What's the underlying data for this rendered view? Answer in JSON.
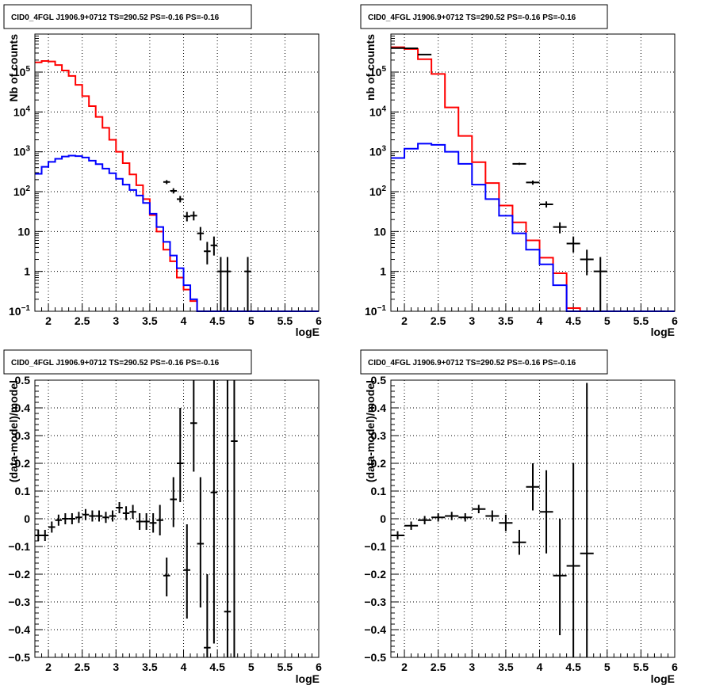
{
  "colors": {
    "model_total": "#ff0000",
    "model_component": "#0000ff",
    "data": "#000000",
    "grid": "#000000",
    "background": "#ffffff"
  },
  "chart_data": [
    {
      "panel": "top-left",
      "type": "histogram",
      "title": "CID0_4FGL J1906.9+0712 TS=290.52 PS=-0.16 PS=-0.16",
      "xlabel": "logE",
      "ylabel": "Nb of counts",
      "xlim": [
        1.8,
        6.0
      ],
      "ylim": [
        0.1,
        900000
      ],
      "yscale": "log",
      "grid": true,
      "xticks": [
        "2",
        "2.5",
        "3",
        "3.5",
        "4",
        "4.5",
        "5",
        "5.5",
        "6"
      ],
      "yticks": [
        "10^-1",
        "1",
        "10",
        "10^2",
        "10^3",
        "10^4",
        "10^5"
      ],
      "bins": {
        "start": 1.8,
        "width": 0.1
      },
      "series": [
        {
          "name": "",
          "color": "red",
          "values": [
            175000,
            190000,
            185000,
            150000,
            110000,
            80000,
            48000,
            25000,
            14000,
            7500,
            4000,
            2000,
            1000,
            520,
            270,
            145,
            65,
            26,
            10,
            3.5,
            1.8,
            0.7,
            0.35,
            0.18,
            0.1,
            0.1,
            0.1,
            0.1,
            0.1,
            0.1,
            0.1,
            0.1,
            0.1,
            0.1,
            0.1,
            0.1,
            0.1,
            0.1,
            0.1,
            0.1,
            0.1,
            0.1
          ]
        },
        {
          "name": "",
          "color": "blue",
          "values": [
            280,
            420,
            560,
            670,
            760,
            800,
            780,
            720,
            600,
            490,
            380,
            290,
            210,
            150,
            110,
            80,
            52,
            28,
            13,
            5.5,
            2.5,
            1.2,
            0.45,
            0.2,
            0.1,
            0.1,
            0.1,
            0.1,
            0.1,
            0.1,
            0.1,
            0.1,
            0.1,
            0.1,
            0.1,
            0.1,
            0.1,
            0.1,
            0.1,
            0.1,
            0.1,
            0.1
          ]
        }
      ],
      "points": [
        {
          "x": 3.75,
          "y": 175,
          "ylo": 155,
          "yhi": 195
        },
        {
          "x": 3.85,
          "y": 105,
          "ylo": 90,
          "yhi": 122
        },
        {
          "x": 3.95,
          "y": 65,
          "ylo": 54,
          "yhi": 78
        },
        {
          "x": 4.05,
          "y": 24,
          "ylo": 18,
          "yhi": 31
        },
        {
          "x": 4.15,
          "y": 25,
          "ylo": 19,
          "yhi": 32
        },
        {
          "x": 4.25,
          "y": 9,
          "ylo": 6,
          "yhi": 13
        },
        {
          "x": 4.35,
          "y": 3.2,
          "ylo": 1.5,
          "yhi": 5.5
        },
        {
          "x": 4.45,
          "y": 4.5,
          "ylo": 2.5,
          "yhi": 7.5
        },
        {
          "x": 4.55,
          "y": 1,
          "ylo": 0.1,
          "yhi": 2.3
        },
        {
          "x": 4.65,
          "y": 1,
          "ylo": 0.1,
          "yhi": 2.3
        },
        {
          "x": 4.95,
          "y": 1,
          "ylo": 0.1,
          "yhi": 2.3
        }
      ]
    },
    {
      "panel": "top-right",
      "type": "histogram",
      "title": "CID0_4FGL J1906.9+0712 TS=290.52 PS=-0.16 PS=-0.16",
      "xlabel": "logE",
      "ylabel": "nb of counts",
      "xlim": [
        1.8,
        6.0
      ],
      "ylim": [
        0.1,
        900000
      ],
      "yscale": "log",
      "grid": true,
      "xticks": [
        "2",
        "2.5",
        "3",
        "3.5",
        "4",
        "4.5",
        "5",
        "5.5",
        "6"
      ],
      "yticks": [
        "10^-1",
        "1",
        "10",
        "10^2",
        "10^3",
        "10^4",
        "10^5"
      ],
      "bins": {
        "start": 1.8,
        "width": 0.2
      },
      "series": [
        {
          "name": "",
          "color": "red",
          "values": [
            420000,
            380000,
            210000,
            90000,
            13000,
            2500,
            550,
            165,
            45,
            17,
            6,
            2.2,
            0.9,
            0.12,
            0.1,
            0.1,
            0.1,
            0.1,
            0.1,
            0.1,
            0.1
          ]
        },
        {
          "name": "",
          "color": "blue",
          "values": [
            700,
            1200,
            1600,
            1500,
            1000,
            500,
            150,
            65,
            25,
            9,
            3.5,
            1.5,
            0.45,
            0.1,
            0.1,
            0.1,
            0.1,
            0.1,
            0.1,
            0.1,
            0.1
          ]
        }
      ],
      "points": [
        {
          "x": 1.9,
          "y": 400000,
          "ylo": 395000,
          "yhi": 405000
        },
        {
          "x": 2.1,
          "y": 395000,
          "ylo": 390000,
          "yhi": 400000
        },
        {
          "x": 2.3,
          "y": 275000,
          "ylo": 270000,
          "yhi": 280000
        },
        {
          "x": 3.7,
          "y": 500,
          "ylo": 470,
          "yhi": 530
        },
        {
          "x": 3.9,
          "y": 170,
          "ylo": 150,
          "yhi": 190
        },
        {
          "x": 4.1,
          "y": 48,
          "ylo": 40,
          "yhi": 57
        },
        {
          "x": 4.3,
          "y": 13,
          "ylo": 9,
          "yhi": 17
        },
        {
          "x": 4.5,
          "y": 5,
          "ylo": 3,
          "yhi": 7.5
        },
        {
          "x": 4.7,
          "y": 2,
          "ylo": 0.8,
          "yhi": 3.5
        },
        {
          "x": 4.9,
          "y": 1,
          "ylo": 0.1,
          "yhi": 2.3
        }
      ]
    },
    {
      "panel": "bottom-left",
      "type": "scatter",
      "title": "CID0_4FGL J1906.9+0712 TS=290.52 PS=-0.16 PS=-0.16",
      "xlabel": "logE",
      "ylabel": "(data-model)/model",
      "xlim": [
        1.8,
        6.0
      ],
      "ylim": [
        -0.5,
        0.5
      ],
      "grid": true,
      "xticks": [
        "2",
        "2.5",
        "3",
        "3.5",
        "4",
        "4.5",
        "5",
        "5.5",
        "6"
      ],
      "yticks": [
        "-0.5",
        "-0.4",
        "-0.3",
        "-0.2",
        "-0.1",
        "0",
        "0.1",
        "0.2",
        "0.3",
        "0.4",
        "0.5"
      ],
      "xerr": 0.05,
      "points": [
        {
          "x": 1.85,
          "y": -0.06,
          "ylo": -0.08,
          "yhi": -0.04
        },
        {
          "x": 1.95,
          "y": -0.06,
          "ylo": -0.08,
          "yhi": -0.04
        },
        {
          "x": 2.05,
          "y": -0.03,
          "ylo": -0.05,
          "yhi": -0.01
        },
        {
          "x": 2.15,
          "y": -0.005,
          "ylo": -0.025,
          "yhi": 0.015
        },
        {
          "x": 2.25,
          "y": 0.0,
          "ylo": -0.02,
          "yhi": 0.02
        },
        {
          "x": 2.35,
          "y": 0.0,
          "ylo": -0.02,
          "yhi": 0.02
        },
        {
          "x": 2.45,
          "y": 0.005,
          "ylo": -0.015,
          "yhi": 0.025
        },
        {
          "x": 2.55,
          "y": 0.015,
          "ylo": -0.005,
          "yhi": 0.035
        },
        {
          "x": 2.65,
          "y": 0.01,
          "ylo": -0.01,
          "yhi": 0.03
        },
        {
          "x": 2.75,
          "y": 0.01,
          "ylo": -0.01,
          "yhi": 0.03
        },
        {
          "x": 2.85,
          "y": 0.005,
          "ylo": -0.015,
          "yhi": 0.025
        },
        {
          "x": 2.95,
          "y": 0.01,
          "ylo": -0.01,
          "yhi": 0.03
        },
        {
          "x": 3.05,
          "y": 0.04,
          "ylo": 0.02,
          "yhi": 0.06
        },
        {
          "x": 3.15,
          "y": 0.02,
          "ylo": -0.005,
          "yhi": 0.045
        },
        {
          "x": 3.25,
          "y": 0.025,
          "ylo": 0.0,
          "yhi": 0.05
        },
        {
          "x": 3.35,
          "y": -0.01,
          "ylo": -0.04,
          "yhi": 0.02
        },
        {
          "x": 3.45,
          "y": -0.01,
          "ylo": -0.04,
          "yhi": 0.02
        },
        {
          "x": 3.55,
          "y": -0.015,
          "ylo": -0.05,
          "yhi": 0.02
        },
        {
          "x": 3.65,
          "y": -0.005,
          "ylo": -0.06,
          "yhi": 0.05
        },
        {
          "x": 3.75,
          "y": -0.205,
          "ylo": -0.28,
          "yhi": -0.14
        },
        {
          "x": 3.85,
          "y": 0.07,
          "ylo": -0.03,
          "yhi": 0.15
        },
        {
          "x": 3.95,
          "y": 0.2,
          "ylo": 0.06,
          "yhi": 0.4
        },
        {
          "x": 4.05,
          "y": -0.185,
          "ylo": -0.36,
          "yhi": -0.02
        },
        {
          "x": 4.15,
          "y": 0.345,
          "ylo": 0.17,
          "yhi": 0.53
        },
        {
          "x": 4.25,
          "y": -0.09,
          "ylo": -0.32,
          "yhi": 0.15
        },
        {
          "x": 4.35,
          "y": -0.465,
          "ylo": -0.5,
          "yhi": -0.2
        },
        {
          "x": 4.45,
          "y": 0.095,
          "ylo": -0.45,
          "yhi": 0.6
        },
        {
          "x": 4.65,
          "y": -0.335,
          "ylo": -0.5,
          "yhi": 0.6
        },
        {
          "x": 4.75,
          "y": 0.28,
          "ylo": -0.5,
          "yhi": 0.6
        }
      ]
    },
    {
      "panel": "bottom-right",
      "type": "scatter",
      "title": "CID0_4FGL J1906.9+0712 TS=290.52 PS=-0.16 PS=-0.16",
      "xlabel": "logE",
      "ylabel": "(data-model)/model",
      "xlim": [
        1.8,
        6.0
      ],
      "ylim": [
        -0.5,
        0.5
      ],
      "grid": true,
      "xticks": [
        "2",
        "2.5",
        "3",
        "3.5",
        "4",
        "4.5",
        "5",
        "5.5",
        "6"
      ],
      "yticks": [
        "-0.5",
        "-0.4",
        "-0.3",
        "-0.2",
        "-0.1",
        "0",
        "0.1",
        "0.2",
        "0.3",
        "0.4",
        "0.5"
      ],
      "xerr": 0.1,
      "points": [
        {
          "x": 1.9,
          "y": -0.06,
          "ylo": -0.075,
          "yhi": -0.045
        },
        {
          "x": 2.1,
          "y": -0.025,
          "ylo": -0.04,
          "yhi": -0.01
        },
        {
          "x": 2.3,
          "y": -0.005,
          "ylo": -0.02,
          "yhi": 0.01
        },
        {
          "x": 2.5,
          "y": 0.005,
          "ylo": -0.01,
          "yhi": 0.02
        },
        {
          "x": 2.7,
          "y": 0.01,
          "ylo": -0.005,
          "yhi": 0.025
        },
        {
          "x": 2.9,
          "y": 0.005,
          "ylo": -0.01,
          "yhi": 0.02
        },
        {
          "x": 3.1,
          "y": 0.035,
          "ylo": 0.02,
          "yhi": 0.05
        },
        {
          "x": 3.3,
          "y": 0.01,
          "ylo": -0.01,
          "yhi": 0.03
        },
        {
          "x": 3.5,
          "y": -0.015,
          "ylo": -0.045,
          "yhi": 0.015
        },
        {
          "x": 3.7,
          "y": -0.085,
          "ylo": -0.13,
          "yhi": -0.04
        },
        {
          "x": 3.9,
          "y": 0.115,
          "ylo": 0.03,
          "yhi": 0.2
        },
        {
          "x": 4.1,
          "y": 0.025,
          "ylo": -0.125,
          "yhi": 0.175
        },
        {
          "x": 4.3,
          "y": -0.205,
          "ylo": -0.42,
          "yhi": 0.0
        },
        {
          "x": 4.5,
          "y": -0.17,
          "ylo": -0.5,
          "yhi": 0.2
        },
        {
          "x": 4.7,
          "y": -0.125,
          "ylo": -0.5,
          "yhi": 0.49
        }
      ]
    }
  ]
}
